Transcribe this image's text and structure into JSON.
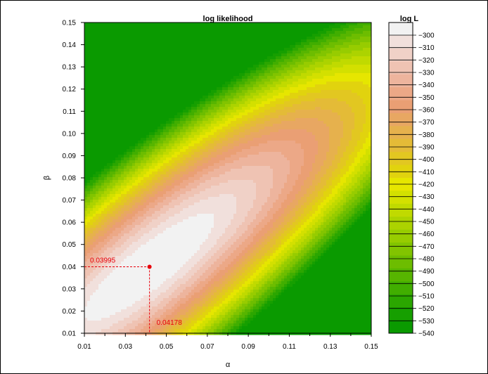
{
  "chart_data": {
    "type": "heatmap",
    "title": "log likelihood",
    "xlabel": "α",
    "ylabel": "β",
    "xlim": [
      0.01,
      0.15
    ],
    "ylim": [
      0.01,
      0.15
    ],
    "x_ticks": [
      "0.01",
      "0.03",
      "0.05",
      "0.07",
      "0.09",
      "0.11",
      "0.13",
      "0.15"
    ],
    "y_ticks": [
      "0.01",
      "0.02",
      "0.03",
      "0.04",
      "0.05",
      "0.06",
      "0.07",
      "0.08",
      "0.09",
      "0.10",
      "0.11",
      "0.12",
      "0.13",
      "0.14",
      "0.15"
    ],
    "maximum": {
      "alpha": 0.04178,
      "beta": 0.03995,
      "alpha_label": "0.04178",
      "beta_label": "0.03995"
    },
    "colorbar": {
      "title": "log L",
      "levels": [
        -300,
        -310,
        -320,
        -330,
        -340,
        -350,
        -360,
        -370,
        -380,
        -390,
        -400,
        -410,
        -420,
        -430,
        -440,
        -450,
        -460,
        -470,
        -480,
        -490,
        -500,
        -510,
        -520,
        -530,
        -540
      ],
      "labels": [
        "−300",
        "−310",
        "−320",
        "−330",
        "−340",
        "−350",
        "−360",
        "−370",
        "−380",
        "−390",
        "−400",
        "−410",
        "−420",
        "−430",
        "−440",
        "−450",
        "−460",
        "−470",
        "−480",
        "−490",
        "−500",
        "−510",
        "−520",
        "−530",
        "−540"
      ],
      "colors": [
        "#f2f2f2",
        "#f1e0dc",
        "#f0d1c7",
        "#efc3b3",
        "#edb49d",
        "#eca887",
        "#ea9f74",
        "#e8a762",
        "#e6b14d",
        "#e4bb37",
        "#e2c721",
        "#e1d30e",
        "#e6e600",
        "#d3e000",
        "#c0da00",
        "#acd300",
        "#97cc00",
        "#82c400",
        "#6dbd00",
        "#57b500",
        "#41ae00",
        "#2ba600",
        "#169f00",
        "#0a9a00"
      ]
    }
  }
}
